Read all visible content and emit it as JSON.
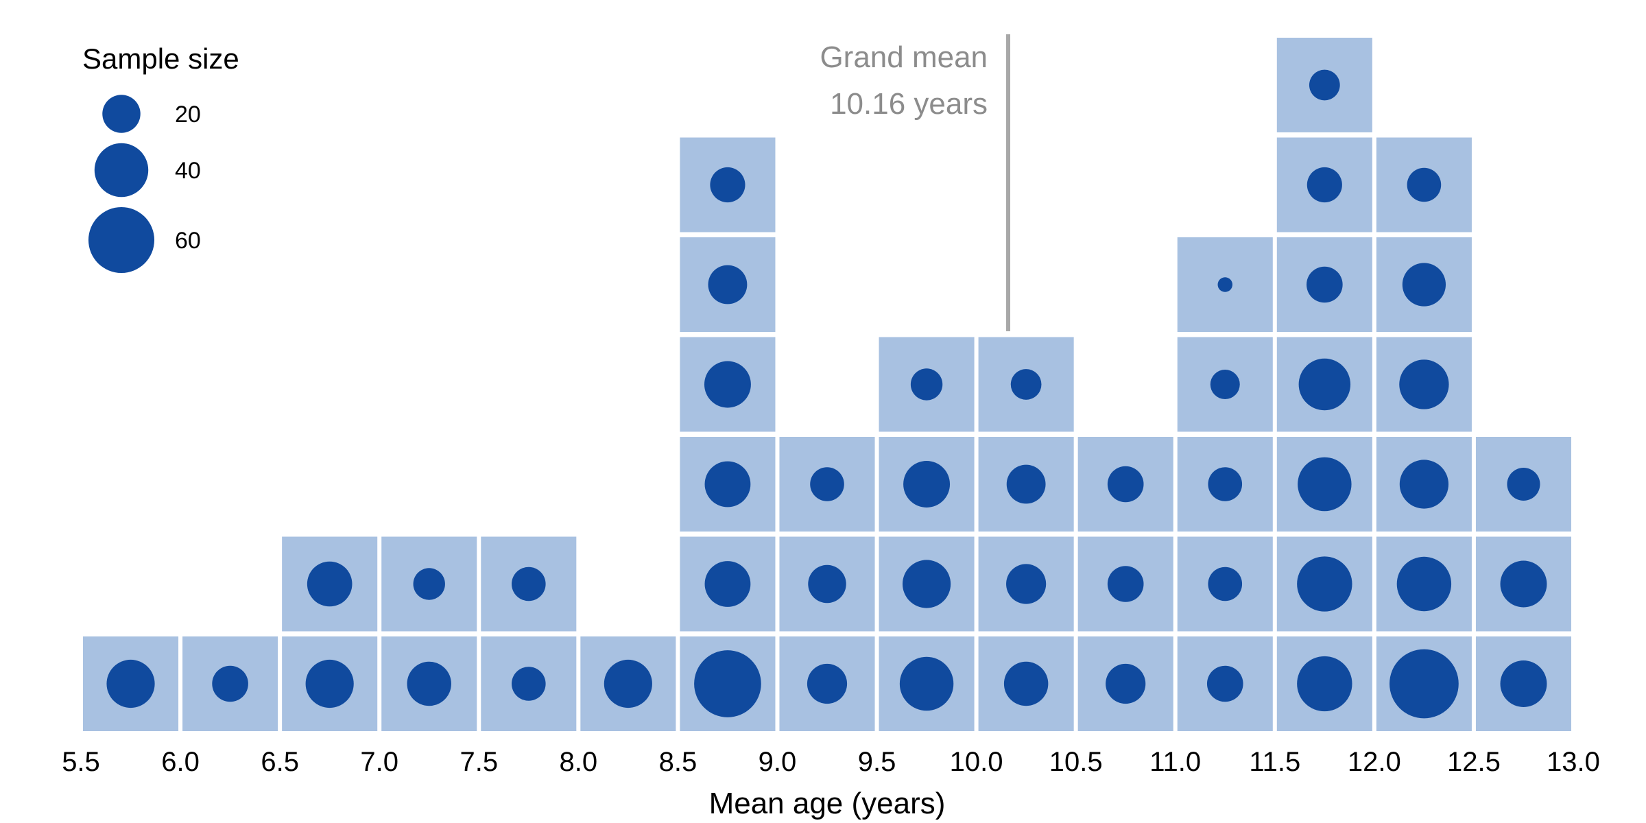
{
  "chart_data": {
    "type": "histogram",
    "xlabel": "Mean age (years)",
    "x_ticks": [
      "5.5",
      "6.0",
      "6.5",
      "7.0",
      "7.5",
      "8.0",
      "8.5",
      "9.0",
      "9.5",
      "10.0",
      "10.5",
      "11.0",
      "11.5",
      "12.0",
      "12.5",
      "13.0"
    ],
    "xlim": [
      5.5,
      13.0
    ],
    "bin_width": 0.5,
    "bins": [
      {
        "start": 5.5,
        "sample_sizes": [
          32
        ]
      },
      {
        "start": 6.0,
        "sample_sizes": [
          18
        ]
      },
      {
        "start": 6.5,
        "sample_sizes": [
          32,
          28
        ]
      },
      {
        "start": 7.0,
        "sample_sizes": [
          27,
          14
        ]
      },
      {
        "start": 7.5,
        "sample_sizes": [
          16,
          16
        ]
      },
      {
        "start": 8.0,
        "sample_sizes": [
          32
        ]
      },
      {
        "start": 8.5,
        "sample_sizes": [
          62,
          29,
          29,
          30,
          21,
          17
        ]
      },
      {
        "start": 9.0,
        "sample_sizes": [
          22,
          20,
          16
        ]
      },
      {
        "start": 9.5,
        "sample_sizes": [
          40,
          32,
          30,
          14
        ]
      },
      {
        "start": 10.0,
        "sample_sizes": [
          27,
          22,
          21,
          13
        ]
      },
      {
        "start": 10.5,
        "sample_sizes": [
          22,
          18,
          18
        ]
      },
      {
        "start": 11.0,
        "sample_sizes": [
          18,
          16,
          16,
          12,
          3
        ]
      },
      {
        "start": 11.5,
        "sample_sizes": [
          42,
          42,
          40,
          37,
          18,
          17,
          13
        ]
      },
      {
        "start": 12.0,
        "sample_sizes": [
          66,
          41,
          33,
          34,
          26,
          16
        ]
      },
      {
        "start": 12.5,
        "sample_sizes": [
          30,
          30,
          15
        ]
      }
    ],
    "grand_mean": {
      "value": 10.16,
      "label_line1": "Grand mean",
      "label_line2": "10.16 years"
    },
    "legend": {
      "title": "Sample size",
      "placement": "top-left",
      "entries": [
        {
          "value": 20,
          "label": "20"
        },
        {
          "value": 40,
          "label": "40"
        },
        {
          "value": 60,
          "label": "60"
        }
      ]
    },
    "colors": {
      "tile": "#a8c1e1",
      "dot": "#104a9e",
      "mean_line": "#a8a8a8",
      "mean_text": "#8c8c8c"
    }
  }
}
